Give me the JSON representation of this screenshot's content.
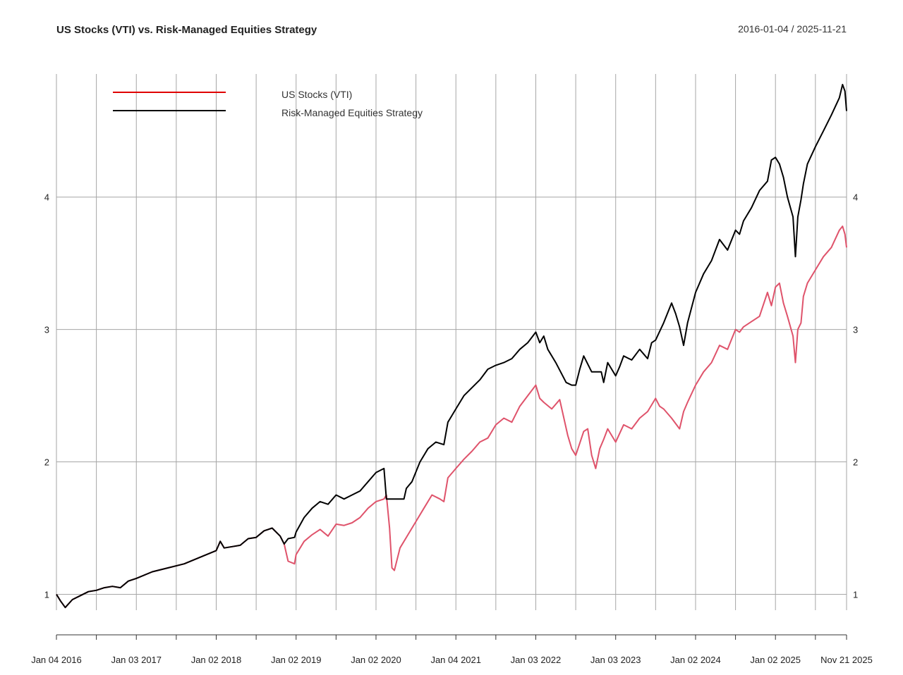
{
  "chart_data": {
    "type": "line",
    "title": "US Stocks (VTI) vs. Risk-Managed Equities Strategy",
    "date_range": "2016-01-04 / 2025-11-21",
    "xlabel": "",
    "ylabel": "",
    "ylim": [
      0.88,
      4.93
    ],
    "y_ticks": [
      1,
      2,
      3,
      4
    ],
    "grid": true,
    "legend_position": "top-left",
    "x_axis": {
      "start_year": 2016.0,
      "end_year": 2025.89,
      "tick_labels": [
        {
          "label": "Jan 04 2016",
          "year": 2016.0
        },
        {
          "label": "Jan 03 2017",
          "year": 2017.0
        },
        {
          "label": "Jan 02 2018",
          "year": 2018.0
        },
        {
          "label": "Jan 02 2019",
          "year": 2019.0
        },
        {
          "label": "Jan 02 2020",
          "year": 2020.0
        },
        {
          "label": "Jan 04 2021",
          "year": 2021.0
        },
        {
          "label": "Jan 03 2022",
          "year": 2022.0
        },
        {
          "label": "Jan 03 2023",
          "year": 2023.0
        },
        {
          "label": "Jan 02 2024",
          "year": 2024.0
        },
        {
          "label": "Jan 02 2025",
          "year": 2025.0
        },
        {
          "label": "Nov 21 2025",
          "year": 2025.89
        }
      ],
      "minor_ticks": [
        2016.5,
        2017.5,
        2018.5,
        2019.5,
        2020.5,
        2021.5,
        2022.5,
        2023.5,
        2024.5,
        2025.5
      ]
    },
    "series": [
      {
        "name": "US Stocks (VTI)",
        "color": "#DF536B",
        "legend_color": "#DF0000",
        "x": [
          2016.0,
          2016.05,
          2016.11,
          2016.2,
          2016.3,
          2016.4,
          2016.5,
          2016.6,
          2016.7,
          2016.8,
          2016.9,
          2017.0,
          2017.2,
          2017.4,
          2017.6,
          2017.8,
          2018.0,
          2018.05,
          2018.1,
          2018.2,
          2018.3,
          2018.4,
          2018.5,
          2018.6,
          2018.7,
          2018.8,
          2018.85,
          2018.9,
          2018.98,
          2019.0,
          2019.1,
          2019.2,
          2019.3,
          2019.4,
          2019.5,
          2019.6,
          2019.7,
          2019.8,
          2019.9,
          2020.0,
          2020.1,
          2020.13,
          2020.17,
          2020.2,
          2020.23,
          2020.3,
          2020.4,
          2020.5,
          2020.6,
          2020.7,
          2020.8,
          2020.85,
          2020.9,
          2021.0,
          2021.1,
          2021.2,
          2021.3,
          2021.4,
          2021.5,
          2021.6,
          2021.7,
          2021.8,
          2021.9,
          2022.0,
          2022.05,
          2022.1,
          2022.2,
          2022.3,
          2022.4,
          2022.45,
          2022.5,
          2022.6,
          2022.65,
          2022.7,
          2022.75,
          2022.8,
          2022.85,
          2022.9,
          2023.0,
          2023.1,
          2023.2,
          2023.3,
          2023.4,
          2023.5,
          2023.55,
          2023.6,
          2023.7,
          2023.8,
          2023.85,
          2023.9,
          2024.0,
          2024.1,
          2024.2,
          2024.3,
          2024.4,
          2024.5,
          2024.55,
          2024.6,
          2024.7,
          2024.8,
          2024.9,
          2024.95,
          2025.0,
          2025.05,
          2025.1,
          2025.15,
          2025.22,
          2025.25,
          2025.28,
          2025.32,
          2025.35,
          2025.4,
          2025.5,
          2025.6,
          2025.7,
          2025.8,
          2025.84,
          2025.87,
          2025.89
        ],
        "values": [
          1.0,
          0.95,
          0.9,
          0.96,
          0.99,
          1.02,
          1.03,
          1.05,
          1.06,
          1.05,
          1.1,
          1.12,
          1.17,
          1.2,
          1.23,
          1.28,
          1.33,
          1.4,
          1.35,
          1.36,
          1.37,
          1.42,
          1.43,
          1.48,
          1.5,
          1.44,
          1.38,
          1.25,
          1.23,
          1.3,
          1.4,
          1.45,
          1.49,
          1.44,
          1.53,
          1.52,
          1.54,
          1.58,
          1.65,
          1.7,
          1.72,
          1.75,
          1.5,
          1.2,
          1.18,
          1.35,
          1.45,
          1.55,
          1.65,
          1.75,
          1.72,
          1.7,
          1.88,
          1.95,
          2.02,
          2.08,
          2.15,
          2.18,
          2.28,
          2.33,
          2.3,
          2.42,
          2.5,
          2.58,
          2.48,
          2.45,
          2.4,
          2.47,
          2.2,
          2.1,
          2.05,
          2.23,
          2.25,
          2.05,
          1.95,
          2.1,
          2.17,
          2.25,
          2.15,
          2.28,
          2.25,
          2.33,
          2.38,
          2.48,
          2.42,
          2.4,
          2.33,
          2.25,
          2.38,
          2.45,
          2.58,
          2.68,
          2.75,
          2.88,
          2.85,
          3.0,
          2.98,
          3.02,
          3.06,
          3.1,
          3.28,
          3.18,
          3.32,
          3.35,
          3.2,
          3.1,
          2.95,
          2.75,
          3.0,
          3.05,
          3.25,
          3.35,
          3.45,
          3.55,
          3.62,
          3.75,
          3.78,
          3.72,
          3.62
        ]
      },
      {
        "name": "Risk-Managed Equities Strategy",
        "color": "#000000",
        "legend_color": "#000000",
        "x": [
          2016.0,
          2016.05,
          2016.11,
          2016.2,
          2016.3,
          2016.4,
          2016.5,
          2016.6,
          2016.7,
          2016.8,
          2016.9,
          2017.0,
          2017.2,
          2017.4,
          2017.6,
          2017.8,
          2018.0,
          2018.05,
          2018.1,
          2018.2,
          2018.3,
          2018.4,
          2018.5,
          2018.6,
          2018.7,
          2018.8,
          2018.85,
          2018.9,
          2018.98,
          2019.0,
          2019.1,
          2019.2,
          2019.3,
          2019.4,
          2019.5,
          2019.6,
          2019.7,
          2019.8,
          2019.9,
          2020.0,
          2020.1,
          2020.13,
          2020.17,
          2020.35,
          2020.38,
          2020.45,
          2020.55,
          2020.65,
          2020.75,
          2020.85,
          2020.9,
          2021.0,
          2021.1,
          2021.2,
          2021.3,
          2021.4,
          2021.5,
          2021.6,
          2021.7,
          2021.8,
          2021.9,
          2022.0,
          2022.05,
          2022.1,
          2022.15,
          2022.25,
          2022.38,
          2022.45,
          2022.5,
          2022.55,
          2022.6,
          2022.7,
          2022.72,
          2022.82,
          2022.85,
          2022.9,
          2023.0,
          2023.05,
          2023.1,
          2023.2,
          2023.3,
          2023.4,
          2023.45,
          2023.5,
          2023.6,
          2023.7,
          2023.75,
          2023.8,
          2023.85,
          2023.9,
          2024.0,
          2024.1,
          2024.2,
          2024.3,
          2024.4,
          2024.5,
          2024.55,
          2024.6,
          2024.7,
          2024.8,
          2024.9,
          2024.95,
          2025.0,
          2025.05,
          2025.1,
          2025.15,
          2025.22,
          2025.25,
          2025.28,
          2025.32,
          2025.35,
          2025.4,
          2025.5,
          2025.6,
          2025.7,
          2025.8,
          2025.84,
          2025.87,
          2025.89
        ],
        "values": [
          1.0,
          0.95,
          0.9,
          0.96,
          0.99,
          1.02,
          1.03,
          1.05,
          1.06,
          1.05,
          1.1,
          1.12,
          1.17,
          1.2,
          1.23,
          1.28,
          1.33,
          1.4,
          1.35,
          1.36,
          1.37,
          1.42,
          1.43,
          1.48,
          1.5,
          1.44,
          1.38,
          1.42,
          1.43,
          1.47,
          1.58,
          1.65,
          1.7,
          1.68,
          1.75,
          1.72,
          1.75,
          1.78,
          1.85,
          1.92,
          1.95,
          1.72,
          1.72,
          1.72,
          1.8,
          1.85,
          2.0,
          2.1,
          2.15,
          2.13,
          2.3,
          2.4,
          2.5,
          2.56,
          2.62,
          2.7,
          2.73,
          2.75,
          2.78,
          2.85,
          2.9,
          2.98,
          2.9,
          2.95,
          2.85,
          2.75,
          2.6,
          2.58,
          2.58,
          2.7,
          2.8,
          2.68,
          2.68,
          2.68,
          2.6,
          2.75,
          2.65,
          2.72,
          2.8,
          2.77,
          2.85,
          2.78,
          2.9,
          2.92,
          3.05,
          3.2,
          3.12,
          3.02,
          2.88,
          3.05,
          3.28,
          3.42,
          3.52,
          3.68,
          3.6,
          3.75,
          3.72,
          3.82,
          3.92,
          4.05,
          4.12,
          4.28,
          4.3,
          4.25,
          4.15,
          4.0,
          3.85,
          3.55,
          3.85,
          3.98,
          4.1,
          4.25,
          4.38,
          4.5,
          4.62,
          4.75,
          4.85,
          4.8,
          4.65
        ]
      }
    ]
  }
}
